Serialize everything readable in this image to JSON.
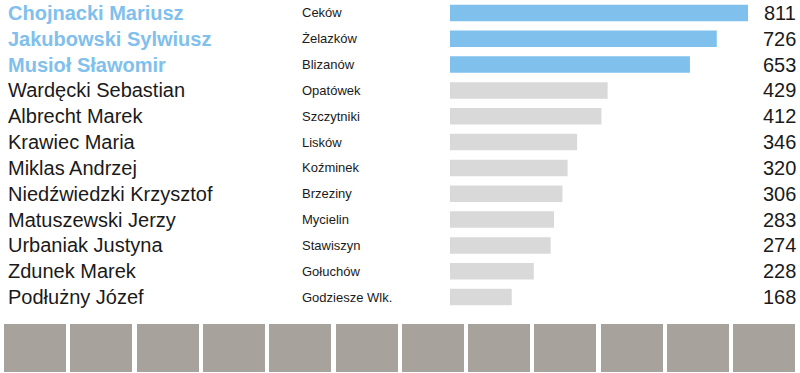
{
  "chart_data": {
    "type": "bar",
    "orientation": "horizontal",
    "categories": [
      "Chojnacki Mariusz",
      "Jakubowski Sylwiusz",
      "Musioł Sławomir",
      "Wardęcki Sebastian",
      "Albrecht Marek",
      "Krawiec Maria",
      "Miklas Andrzej",
      "Niedźwiedzki Krzysztof",
      "Matuszewski Jerzy",
      "Urbaniak Justyna",
      "Zdunek Marek",
      "Podłużny Józef"
    ],
    "locations": [
      "Ceków",
      "Żelazków",
      "Blizanów",
      "Opatówek",
      "Szczytniki",
      "Lisków",
      "Koźminek",
      "Brzeziny",
      "Mycielin",
      "Stawiszyn",
      "Gołuchów",
      "Godziesze Wlk."
    ],
    "values": [
      811,
      726,
      653,
      429,
      412,
      346,
      320,
      306,
      283,
      274,
      228,
      168
    ],
    "colors": [
      "#80c0ec",
      "#80c0ec",
      "#80c0ec",
      "#d9d9d9",
      "#d9d9d9",
      "#d9d9d9",
      "#d9d9d9",
      "#d9d9d9",
      "#d9d9d9",
      "#d9d9d9",
      "#d9d9d9",
      "#d9d9d9"
    ],
    "xlim": [
      0,
      811
    ],
    "data_labels": true,
    "tick_labels": false,
    "grid": false
  }
}
